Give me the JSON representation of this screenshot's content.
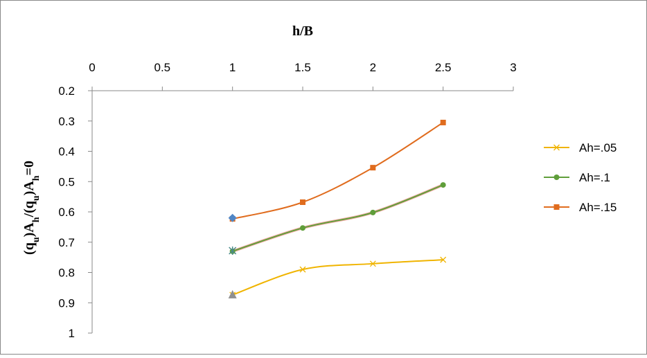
{
  "chart_data": {
    "type": "line",
    "title": "h/B",
    "y_label_parts": [
      {
        "text": "(q"
      },
      {
        "text": "u",
        "sub": true
      },
      {
        "text": ")A"
      },
      {
        "text": "h",
        "sub": true
      },
      {
        "text": "/(q"
      },
      {
        "text": "u",
        "sub": true
      },
      {
        "text": ")A"
      },
      {
        "text": "h",
        "sub": true
      },
      {
        "text": "=0"
      }
    ],
    "x": [
      1,
      1.5,
      2,
      2.5
    ],
    "xlim": [
      0,
      3
    ],
    "xticks": [
      0,
      0.5,
      1,
      1.5,
      2,
      2.5,
      3
    ],
    "ylim": [
      0.2,
      1
    ],
    "yticks": [
      0.2,
      0.3,
      0.4,
      0.5,
      0.6,
      0.7,
      0.8,
      0.9,
      1
    ],
    "y_inverted": true,
    "x_axis_top": true,
    "smooth": true,
    "legend": "right",
    "series": [
      {
        "name": "Ah=.05",
        "color": "#f0b400",
        "marker": "x",
        "values": [
          0.874,
          0.79,
          0.771,
          0.758
        ]
      },
      {
        "name": "Ah=.1",
        "color": "#5f9e3a",
        "marker": "circle",
        "values": [
          0.73,
          0.653,
          0.602,
          0.511
        ]
      },
      {
        "name": "Ah=.15",
        "color": "#e06c1e",
        "marker": "square",
        "values": [
          0.623,
          0.568,
          0.454,
          0.305
        ]
      },
      {
        "color": "#f0a8a0",
        "marker": "none",
        "width": 4,
        "values": [
          0.73,
          0.653,
          0.602,
          0.511
        ]
      },
      {
        "color": "#4f86c6",
        "marker": "diamond",
        "values": [
          0.62,
          null,
          null,
          null
        ]
      },
      {
        "color": "#4a8a8a",
        "marker": "star",
        "values": [
          0.728,
          null,
          null,
          null
        ]
      },
      {
        "color": "#909090",
        "marker": "triangle",
        "values": [
          0.874,
          null,
          null,
          null
        ]
      }
    ]
  }
}
